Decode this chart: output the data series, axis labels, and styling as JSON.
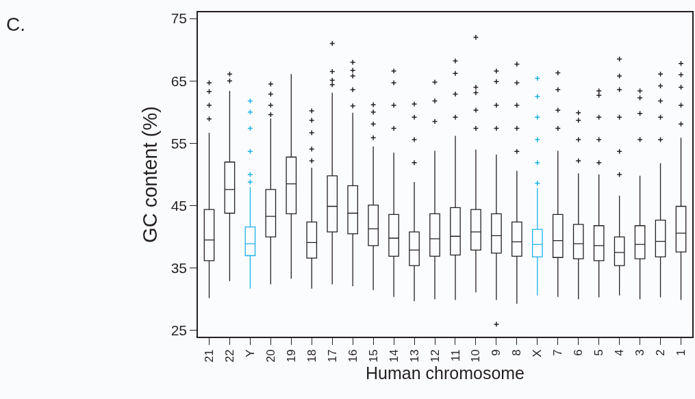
{
  "chart_data": {
    "type": "box",
    "xlabel": "Human chromosome",
    "ylabel": "GC content (%)",
    "annotations": [
      "C."
    ],
    "categories": [
      "21",
      "22",
      "Y",
      "20",
      "19",
      "18",
      "17",
      "16",
      "15",
      "14",
      "13",
      "12",
      "11",
      "10",
      "9",
      "8",
      "X",
      "7",
      "6",
      "5",
      "4",
      "3",
      "2",
      "1"
    ],
    "colors": [
      "#231f20",
      "#231f20",
      "#1ab2e8",
      "#231f20",
      "#231f20",
      "#231f20",
      "#231f20",
      "#231f20",
      "#231f20",
      "#231f20",
      "#231f20",
      "#231f20",
      "#231f20",
      "#231f20",
      "#231f20",
      "#231f20",
      "#1ab2e8",
      "#231f20",
      "#231f20",
      "#231f20",
      "#231f20",
      "#231f20",
      "#231f20",
      "#231f20"
    ],
    "boxes": [
      {
        "low": 30.2,
        "q1": 36.2,
        "median": 39.5,
        "q3": 44.4,
        "high": 56.7,
        "outliers": [
          64.7,
          63.3,
          61.1,
          58.9
        ]
      },
      {
        "low": 32.9,
        "q1": 43.8,
        "median": 47.6,
        "q3": 52.0,
        "high": 63.4,
        "outliers": [
          66.1,
          65.0
        ]
      },
      {
        "low": 31.7,
        "q1": 37.0,
        "median": 38.9,
        "q3": 41.6,
        "high": 48.0,
        "outliers": [
          61.8,
          60.0,
          57.4,
          53.7,
          50.0,
          48.8
        ]
      },
      {
        "low": 32.4,
        "q1": 40.0,
        "median": 43.3,
        "q3": 47.6,
        "high": 59.0,
        "outliers": [
          64.5,
          62.9,
          61.1,
          59.6
        ]
      },
      {
        "low": 33.3,
        "q1": 43.7,
        "median": 48.5,
        "q3": 52.8,
        "high": 66.1
      },
      {
        "low": 31.7,
        "q1": 36.6,
        "median": 39.1,
        "q3": 42.4,
        "high": 51.1,
        "outliers": [
          60.2,
          58.7,
          56.7,
          54.1,
          52.2
        ]
      },
      {
        "low": 32.4,
        "q1": 40.8,
        "median": 44.9,
        "q3": 49.8,
        "high": 63.1,
        "outliers": [
          71.0,
          66.5,
          65.1,
          64.4
        ]
      },
      {
        "low": 32.1,
        "q1": 40.5,
        "median": 43.8,
        "q3": 48.2,
        "high": 59.9,
        "outliers": [
          68.0,
          66.7,
          65.8,
          63.6,
          61.0
        ]
      },
      {
        "low": 31.5,
        "q1": 38.6,
        "median": 41.3,
        "q3": 45.1,
        "high": 54.5,
        "outliers": [
          61.2,
          60.0,
          58.1,
          55.9
        ]
      },
      {
        "low": 30.4,
        "q1": 36.9,
        "median": 39.8,
        "q3": 43.6,
        "high": 53.5,
        "outliers": [
          66.6,
          64.7,
          61.1,
          57.4
        ]
      },
      {
        "low": 29.7,
        "q1": 35.4,
        "median": 37.9,
        "q3": 40.8,
        "high": 48.8,
        "outliers": [
          61.3,
          59.2,
          55.6,
          51.9
        ]
      },
      {
        "low": 30.0,
        "q1": 36.9,
        "median": 39.7,
        "q3": 43.7,
        "high": 53.8,
        "outliers": [
          64.8,
          61.8,
          58.5
        ]
      },
      {
        "low": 29.9,
        "q1": 37.1,
        "median": 40.1,
        "q3": 44.7,
        "high": 56.2,
        "outliers": [
          68.2,
          66.2,
          62.9,
          59.2
        ]
      },
      {
        "low": 31.1,
        "q1": 37.9,
        "median": 40.8,
        "q3": 44.4,
        "high": 54.0,
        "outliers": [
          72.0,
          64.0,
          63.1,
          60.3,
          57.4
        ]
      },
      {
        "low": 29.9,
        "q1": 37.4,
        "median": 40.2,
        "q3": 43.7,
        "high": 53.2,
        "outliers": [
          66.6,
          64.9,
          61.1,
          57.4,
          26.0
        ]
      },
      {
        "low": 29.3,
        "q1": 36.9,
        "median": 39.2,
        "q3": 42.4,
        "high": 50.6,
        "outliers": [
          67.7,
          64.7,
          61.1,
          57.4,
          53.7
        ]
      },
      {
        "low": 30.6,
        "q1": 36.8,
        "median": 38.8,
        "q3": 41.2,
        "high": 47.8,
        "outliers": [
          65.4,
          62.5,
          59.2,
          55.6,
          51.9,
          48.6
        ]
      },
      {
        "low": 30.4,
        "q1": 36.7,
        "median": 39.4,
        "q3": 43.6,
        "high": 53.8,
        "outliers": [
          66.3,
          63.6,
          60.3,
          57.4
        ]
      },
      {
        "low": 30.0,
        "q1": 36.5,
        "median": 38.9,
        "q3": 42.0,
        "high": 50.2,
        "outliers": [
          59.9,
          58.7,
          55.6,
          52.2
        ]
      },
      {
        "low": 30.3,
        "q1": 36.2,
        "median": 38.6,
        "q3": 41.8,
        "high": 50.0,
        "outliers": [
          63.4,
          62.7,
          59.2,
          55.6,
          51.9
        ]
      },
      {
        "low": 30.6,
        "q1": 35.4,
        "median": 37.5,
        "q3": 40.0,
        "high": 46.6,
        "outliers": [
          68.5,
          65.8,
          63.6,
          59.2,
          53.7,
          50.0
        ]
      },
      {
        "low": 30.0,
        "q1": 36.5,
        "median": 38.8,
        "q3": 41.8,
        "high": 49.8,
        "outliers": [
          63.4,
          62.3,
          59.8,
          55.6
        ]
      },
      {
        "low": 30.3,
        "q1": 36.8,
        "median": 39.3,
        "q3": 42.7,
        "high": 51.8,
        "outliers": [
          66.1,
          64.2,
          61.8,
          59.2,
          55.6
        ]
      },
      {
        "low": 29.9,
        "q1": 37.6,
        "median": 40.6,
        "q3": 44.9,
        "high": 55.9,
        "outliers": [
          67.8,
          66.0,
          64.0,
          61.1,
          58.1
        ]
      }
    ],
    "ylim": [
      24,
      76
    ],
    "yticks": [
      25,
      35,
      45,
      55,
      65,
      75
    ],
    "grid": false,
    "marker": "cross"
  }
}
